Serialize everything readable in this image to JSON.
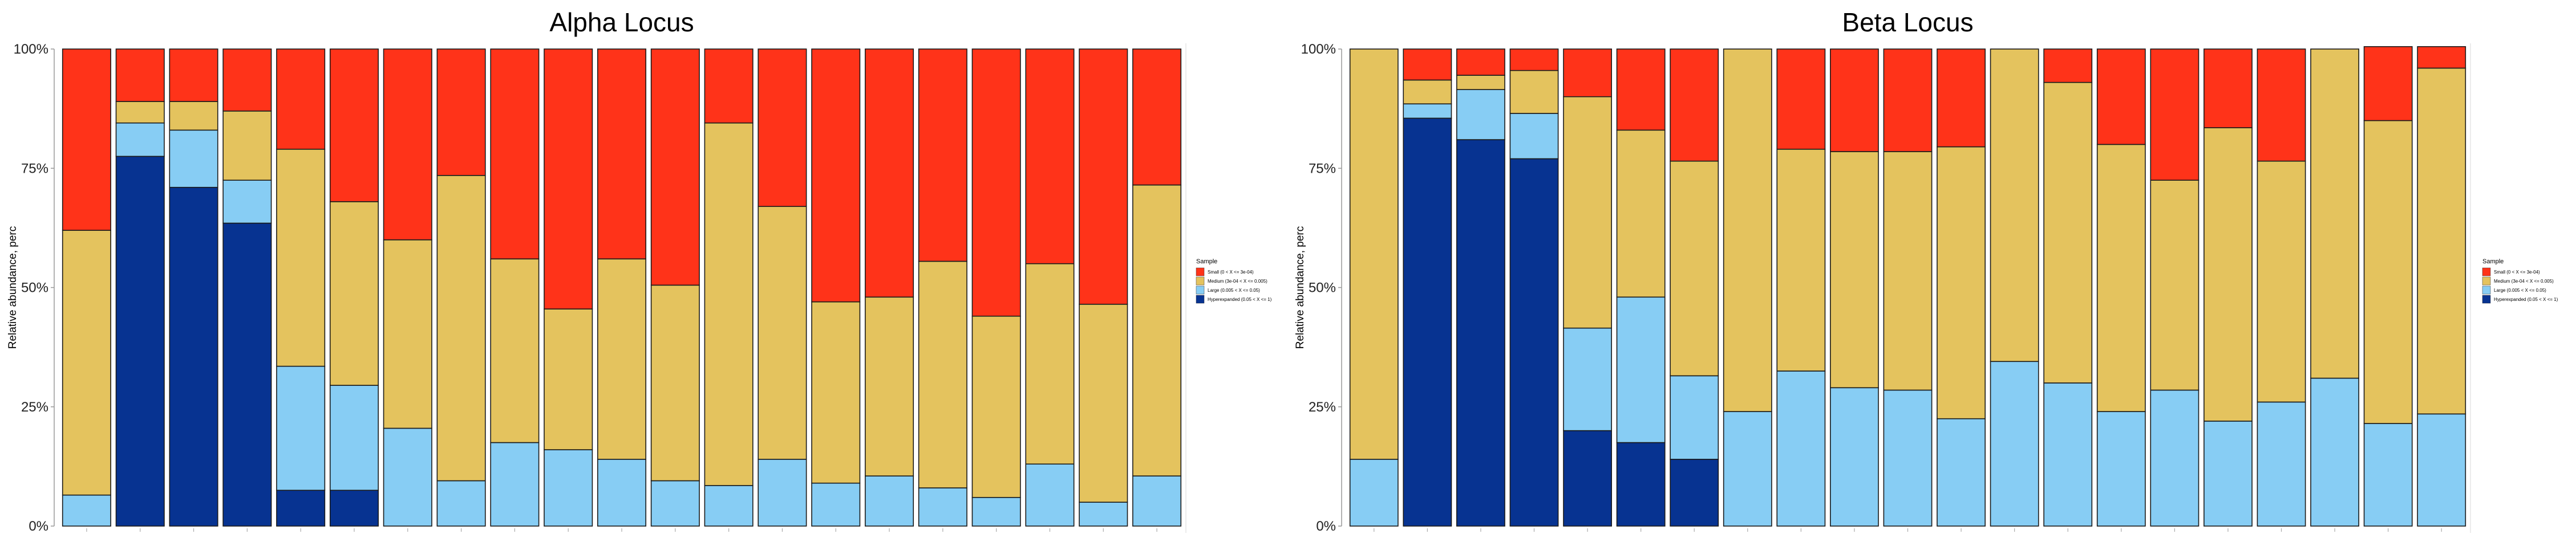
{
  "figure": {
    "ylabel": "Relative abundance, perc",
    "yticks": [
      "0%",
      "25%",
      "50%",
      "75%",
      "100%"
    ],
    "legend_title": "Sample",
    "legend_items": [
      {
        "label": "Small (0 < X <= 3e-04)",
        "color": "#ff3319"
      },
      {
        "label": "Medium (3e-04 < X <= 0.005)",
        "color": "#e4c35e"
      },
      {
        "label": "Large (0.005 < X <= 0.05)",
        "color": "#87cdf4"
      },
      {
        "label": "Hyperexpanded (0.05 < X <= 1)",
        "color": "#073391"
      }
    ]
  },
  "chart_data": [
    {
      "type": "bar",
      "title": "Alpha Locus",
      "ylabel": "Relative abundance, perc",
      "ylim": [
        0,
        100
      ],
      "grid": false,
      "legend": "right",
      "series": [
        {
          "name": "Hyperexpanded (0.05 < X <= 1)",
          "color": "#073391",
          "values": [
            0,
            77.5,
            71,
            63.5,
            7.5,
            7.5,
            0,
            0,
            0,
            0,
            0,
            0,
            0,
            0,
            0,
            0,
            0,
            0,
            0,
            0,
            0
          ]
        },
        {
          "name": "Large (0.005 < X <= 0.05)",
          "color": "#87cdf4",
          "values": [
            6.5,
            7,
            12,
            9,
            26,
            22,
            20.5,
            9.5,
            17.5,
            16,
            14,
            9.5,
            8.5,
            14,
            9,
            10.5,
            8,
            6,
            13,
            5,
            10.5
          ]
        },
        {
          "name": "Medium (3e-04 < X <= 0.005)",
          "color": "#e4c35e",
          "values": [
            55.5,
            4.5,
            6,
            14.5,
            45.5,
            38.5,
            39.5,
            64,
            38.5,
            29.5,
            42,
            41,
            76,
            53,
            38,
            37.5,
            47.5,
            38,
            42,
            41.5,
            61
          ]
        },
        {
          "name": "Small (0 < X <= 3e-04)",
          "color": "#ff3319",
          "values": [
            38,
            11,
            11,
            13,
            21,
            32,
            40,
            26.5,
            44,
            54.5,
            44,
            49.5,
            15.5,
            33,
            53,
            52,
            44.5,
            56,
            45,
            53.5,
            28.5
          ]
        }
      ]
    },
    {
      "type": "bar",
      "title": "Beta Locus",
      "ylabel": "Relative abundance, perc",
      "ylim": [
        0,
        100
      ],
      "grid": false,
      "legend": "right",
      "series": [
        {
          "name": "Hyperexpanded (0.05 < X <= 1)",
          "color": "#073391",
          "values": [
            0,
            85.5,
            81,
            77,
            20,
            17.5,
            14,
            0,
            0,
            0,
            0,
            0,
            0,
            0,
            0,
            0,
            0,
            0,
            0,
            0,
            0
          ]
        },
        {
          "name": "Large (0.005 < X <= 0.05)",
          "color": "#87cdf4",
          "values": [
            14,
            3,
            10.5,
            9.5,
            21.5,
            30.5,
            17.5,
            24,
            32.5,
            29,
            28.5,
            22.5,
            34.5,
            30,
            24,
            28.5,
            22,
            26,
            31,
            21.5,
            23.5
          ]
        },
        {
          "name": "Medium (3e-04 < X <= 0.005)",
          "color": "#e4c35e",
          "values": [
            86,
            5,
            3,
            9,
            48.5,
            35,
            45,
            76,
            46.5,
            49.5,
            50,
            57,
            65.5,
            63,
            56,
            44,
            61.5,
            50.5,
            69,
            63.5,
            72.5
          ]
        },
        {
          "name": "Small (0 < X <= 3e-04)",
          "color": "#ff3319",
          "values": [
            0,
            6.5,
            5.5,
            4.5,
            10,
            17,
            23.5,
            0,
            21,
            21.5,
            21.5,
            20.5,
            0,
            7,
            20,
            27.5,
            16.5,
            23.5,
            0,
            15.5,
            4.5
          ]
        }
      ]
    }
  ]
}
